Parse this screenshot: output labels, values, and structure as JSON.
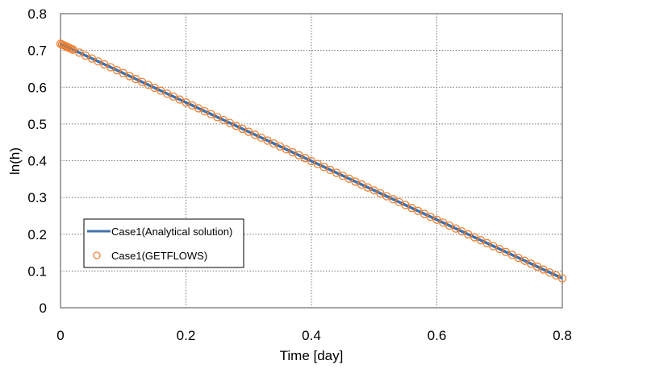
{
  "chart_data": {
    "type": "line",
    "title": "",
    "xlabel": "Time [day]",
    "ylabel": "ln(h)",
    "xlim": [
      0,
      0.8
    ],
    "ylim": [
      0,
      0.8
    ],
    "x_ticks": [
      "0",
      "0.2",
      "0.4",
      "0.6",
      "0.8"
    ],
    "y_ticks": [
      "0",
      "0.1",
      "0.2",
      "0.3",
      "0.4",
      "0.5",
      "0.6",
      "0.7",
      "0.8"
    ],
    "grid": true,
    "legend_position": "lower-left inside",
    "series": [
      {
        "name": "Case1(Analytical solution)",
        "style": "line",
        "color": "#4472A8",
        "x": [
          0,
          0.8
        ],
        "y": [
          0.718,
          0.08
        ]
      },
      {
        "name": "Case1(GETFLOWS)",
        "style": "open-circle markers",
        "color": "#F07F2E",
        "x_start": 0,
        "x_end": 0.8,
        "count": 80,
        "y_start": 0.718,
        "y_end": 0.08,
        "note": "markers densely sampled along the analytical line, denser near t=0"
      }
    ]
  },
  "legend": {
    "items": [
      "Case1(Analytical solution)",
      "Case1(GETFLOWS)"
    ]
  }
}
